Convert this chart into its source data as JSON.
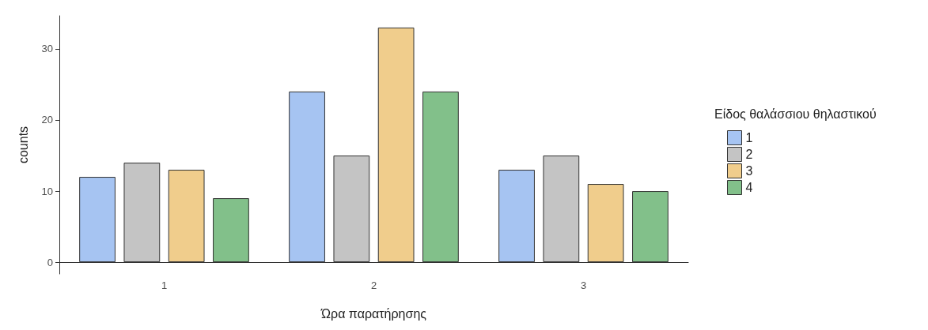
{
  "chart_data": {
    "type": "bar",
    "xlabel": "Ώρα παρατήρησης",
    "ylabel": "counts",
    "legend_title": "Είδος θαλάσσιου θηλαστικού",
    "categories": [
      "1",
      "2",
      "3"
    ],
    "series": [
      {
        "name": "1",
        "color": "#a6c4f2",
        "values": [
          12,
          24,
          13
        ]
      },
      {
        "name": "2",
        "color": "#c4c4c4",
        "values": [
          14,
          15,
          15
        ]
      },
      {
        "name": "3",
        "color": "#f0cd8c",
        "values": [
          13,
          33,
          11
        ]
      },
      {
        "name": "4",
        "color": "#82c08a",
        "values": [
          9,
          24,
          10
        ]
      }
    ],
    "ylim": [
      -1.65,
      34.65
    ],
    "yticks": [
      0,
      10,
      20,
      30
    ],
    "grid": false,
    "legend": "right"
  }
}
